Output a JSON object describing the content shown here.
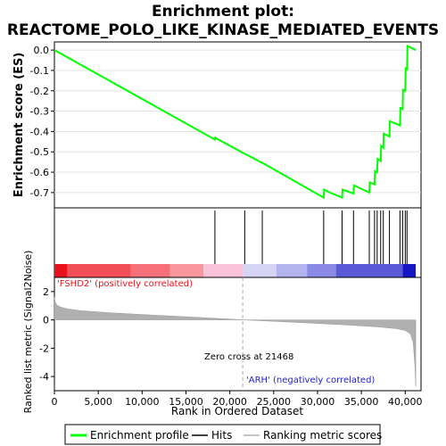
{
  "chart_data": {
    "type": "line",
    "title": "Enrichment plot:",
    "subtitle": "REACTOME_POLO_LIKE_KINASE_MEDIATED_EVENTS",
    "es_panel": {
      "ylabel": "Enrichment score (ES)",
      "ylim": [
        -0.775,
        0.04
      ],
      "yticks": [
        0.0,
        -0.1,
        -0.2,
        -0.3,
        -0.4,
        -0.5,
        -0.6,
        -0.7
      ],
      "ytick_labels": [
        "0.0",
        "-0.1",
        "-0.2",
        "-0.3",
        "-0.4",
        "-0.5",
        "-0.6",
        "-0.7"
      ],
      "series": [
        {
          "name": "Enrichment profile",
          "color": "#00ff00",
          "x": [
            0,
            18300,
            18350,
            18500,
            21700,
            21750,
            23700,
            23750,
            30700,
            30750,
            31400,
            32800,
            32850,
            34100,
            34150,
            35900,
            35950,
            36500,
            36550,
            36800,
            36850,
            37200,
            37250,
            37500,
            37550,
            38200,
            38250,
            39400,
            39450,
            39700,
            39750,
            40000,
            40050,
            40200,
            40250,
            41200
          ],
          "y": [
            0.0,
            -0.44,
            -0.43,
            -0.435,
            -0.51,
            -0.51,
            -0.555,
            -0.555,
            -0.725,
            -0.685,
            -0.7,
            -0.725,
            -0.685,
            -0.705,
            -0.665,
            -0.7,
            -0.65,
            -0.66,
            -0.595,
            -0.6,
            -0.535,
            -0.545,
            -0.47,
            -0.48,
            -0.41,
            -0.425,
            -0.35,
            -0.37,
            -0.285,
            -0.29,
            -0.195,
            -0.2,
            -0.09,
            -0.095,
            0.02,
            0.0
          ]
        }
      ]
    },
    "hits": {
      "name": "Hits",
      "color": "#000000",
      "x": [
        18300,
        21700,
        23700,
        30700,
        32800,
        34100,
        35900,
        36500,
        36800,
        37200,
        37500,
        38200,
        39400,
        39700,
        40000,
        40200
      ]
    },
    "color_bar": {
      "segments": [
        {
          "start": 0,
          "end": 1500,
          "color": "#e8111b"
        },
        {
          "start": 1500,
          "end": 8700,
          "color": "#f24e57"
        },
        {
          "start": 8700,
          "end": 13200,
          "color": "#f57079"
        },
        {
          "start": 13200,
          "end": 17000,
          "color": "#f8979d"
        },
        {
          "start": 17000,
          "end": 21500,
          "color": "#fac2d8"
        },
        {
          "start": 21500,
          "end": 25300,
          "color": "#d5d4f5"
        },
        {
          "start": 25300,
          "end": 28800,
          "color": "#b3b3f0"
        },
        {
          "start": 28800,
          "end": 32100,
          "color": "#8a8ae6"
        },
        {
          "start": 32100,
          "end": 39700,
          "color": "#5a5ad9"
        },
        {
          "start": 39700,
          "end": 41200,
          "color": "#1616c4"
        }
      ]
    },
    "metric_panel": {
      "ylabel": "Ranked list metric (Signal2Noise)",
      "ylim": [
        -5.0,
        3.0
      ],
      "yticks": [
        2,
        0,
        -2,
        -4
      ],
      "ytick_labels": [
        "2",
        "0",
        "-2",
        "-4"
      ],
      "fill_color": "#b0b0b0",
      "x": [
        0,
        100,
        300,
        700,
        1500,
        3000,
        6000,
        10000,
        15000,
        20000,
        21468,
        25000,
        30000,
        34000,
        37000,
        39000,
        40000,
        40600,
        40900,
        41100,
        41200
      ],
      "y": [
        1.6,
        1.25,
        1.05,
        0.9,
        0.78,
        0.65,
        0.52,
        0.38,
        0.22,
        0.06,
        0.0,
        -0.1,
        -0.25,
        -0.38,
        -0.5,
        -0.62,
        -0.75,
        -1.0,
        -1.6,
        -3.2,
        -4.7
      ],
      "zero_cross_label": "Zero cross at 21468",
      "zero_cross_x": 21468,
      "positive_label": "'FSHD2' (positively correlated)",
      "negative_label": "'ARH' (negatively correlated)"
    },
    "xaxis": {
      "xlabel": "Rank in Ordered Dataset",
      "xlim": [
        0,
        41800
      ],
      "xticks": [
        0,
        5000,
        10000,
        15000,
        20000,
        25000,
        30000,
        35000,
        40000
      ],
      "xtick_labels": [
        "0",
        "5,000",
        "10,000",
        "15,000",
        "20,000",
        "25,000",
        "30,000",
        "35,000",
        "40,000"
      ]
    },
    "legend": {
      "placement": "bottom",
      "entries": [
        {
          "label": "Enrichment profile",
          "color": "#00ff00"
        },
        {
          "label": "Hits",
          "color": "#000000"
        },
        {
          "label": "Ranking metric scores",
          "color": "#b0b0b0"
        }
      ]
    }
  }
}
